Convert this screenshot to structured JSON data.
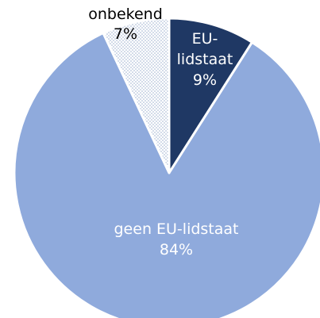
{
  "chart_data": {
    "type": "pie",
    "slices": [
      {
        "label": "EU-lidstaat",
        "label_lines": [
          "EU-",
          "lidstaat",
          "9%"
        ],
        "value": 9,
        "color": "#1f3864",
        "pattern": "solid",
        "label_color": "#ffffff"
      },
      {
        "label": "geen EU-lidstaat",
        "label_lines": [
          "geen EU-lidstaat",
          "84%"
        ],
        "value": 84,
        "color": "#8faadc",
        "pattern": "solid",
        "label_color": "#ffffff"
      },
      {
        "label": "onbekend",
        "label_lines": [
          "onbekend",
          "7%"
        ],
        "value": 7,
        "color": "#dbe3f1",
        "pattern": "dotted",
        "label_color": "#000000"
      }
    ],
    "start_angle_deg": 0,
    "direction": "clockwise",
    "legend": "none"
  }
}
